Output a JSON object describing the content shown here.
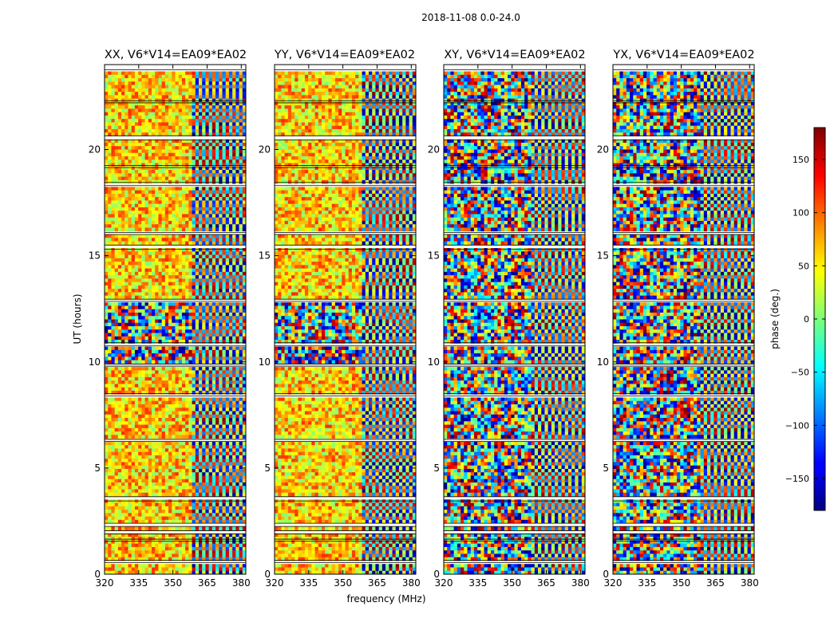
{
  "suptitle": "2018-11-08 0.0-24.0",
  "chart_data": {
    "type": "heatmap",
    "xlabel": "frequency (MHz)",
    "ylabel": "UT (hours)",
    "xlim": [
      320,
      382
    ],
    "ylim": [
      0,
      24
    ],
    "xticks": [
      320,
      335,
      350,
      365,
      380
    ],
    "yticks": [
      0,
      5,
      10,
      15,
      20
    ],
    "xtick_labels": [
      "320",
      "335",
      "350",
      "365",
      "380"
    ],
    "ytick_labels": [
      "0",
      "5",
      "10",
      "15",
      "20"
    ],
    "panels": [
      {
        "title": "XX, V6*V14=EA09*EA02",
        "coherent": true
      },
      {
        "title": "YY, V6*V14=EA09*EA02",
        "coherent": true
      },
      {
        "title": "XY, V6*V14=EA09*EA02",
        "coherent": false
      },
      {
        "title": "YX, V6*V14=EA09*EA02",
        "coherent": false
      }
    ],
    "colorbar": {
      "label": "phase (deg.)",
      "range": [
        -180,
        180
      ],
      "ticks": [
        150,
        100,
        50,
        0,
        -50,
        -100,
        -150
      ],
      "tick_labels": [
        "150",
        "100",
        "50",
        "0",
        "−50",
        "−100",
        "−150"
      ],
      "colormap": "jet"
    },
    "flagged_ut_rows": [
      [
        23.75,
        24.0
      ],
      [
        22.2,
        22.3
      ],
      [
        20.45,
        20.65
      ],
      [
        19.15,
        19.25
      ],
      [
        18.3,
        18.45
      ],
      [
        16.0,
        16.1
      ],
      [
        15.3,
        15.5
      ],
      [
        12.85,
        12.95
      ],
      [
        10.75,
        10.9
      ],
      [
        9.8,
        9.9
      ],
      [
        8.4,
        8.5
      ],
      [
        6.25,
        6.35
      ],
      [
        3.45,
        3.65
      ],
      [
        2.25,
        2.4
      ],
      [
        1.9,
        2.05
      ],
      [
        1.55,
        1.65
      ],
      [
        0.55,
        0.65
      ]
    ]
  }
}
